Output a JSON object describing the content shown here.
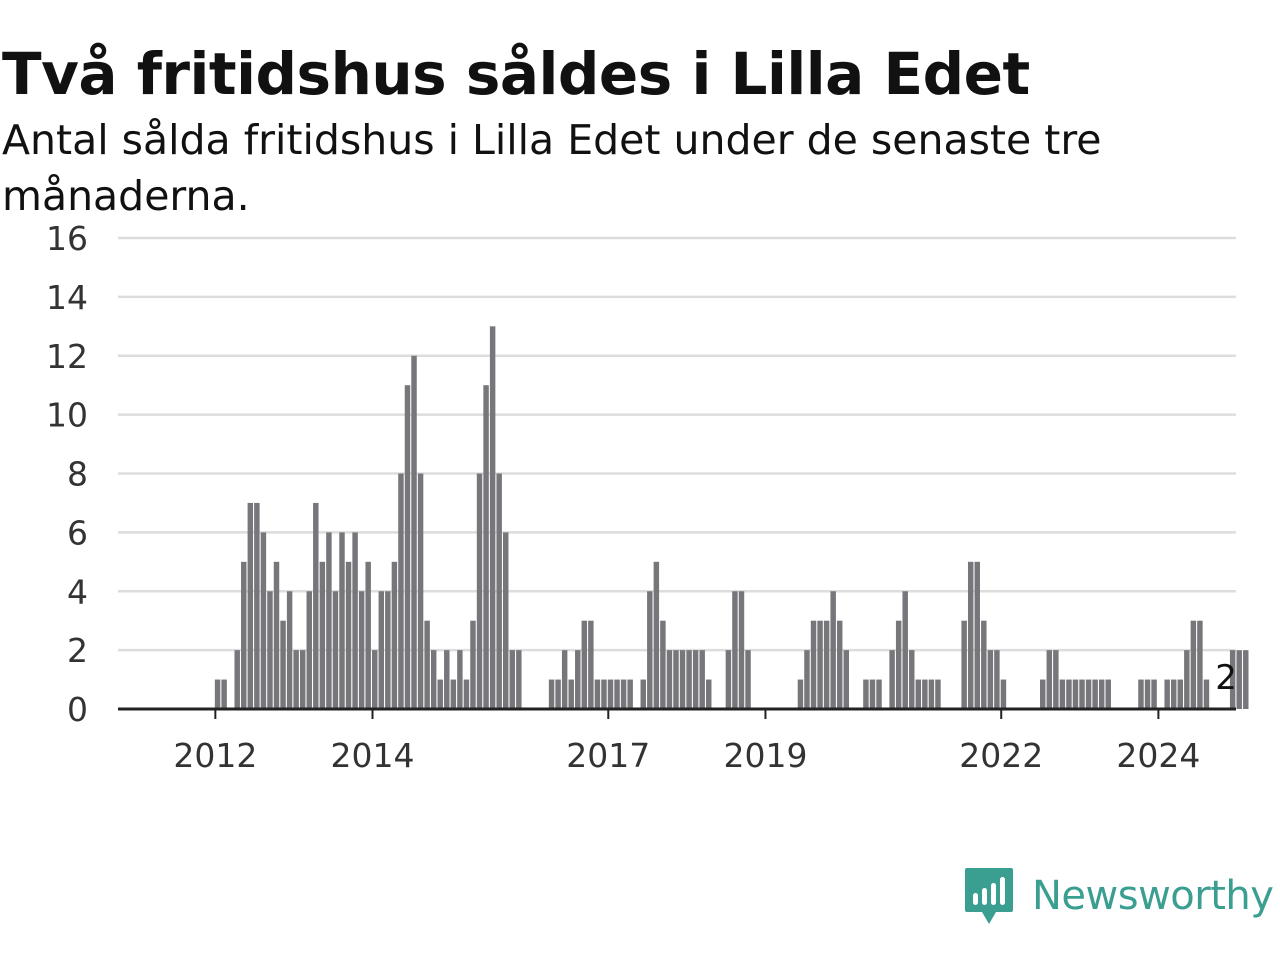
{
  "title": "Två fritidshus såldes i Lilla Edet",
  "subtitle": "Antal sålda fritidshus i Lilla Edet under de senaste tre månaderna.",
  "brand": {
    "name": "Newsworthy",
    "icon": "newsworthy-logo-icon",
    "color": "#3a9e90"
  },
  "colors": {
    "bar": "#76767b",
    "highlight": "#1aa192",
    "grid": "#dddddd",
    "axis": "#222222",
    "tick_text": "#333333"
  },
  "chart_data": {
    "type": "bar",
    "title": "Två fritidshus såldes i Lilla Edet",
    "subtitle": "Antal sålda fritidshus i Lilla Edet under de senaste tre månaderna.",
    "xlabel": "",
    "ylabel": "",
    "ylim": [
      0,
      16
    ],
    "yticks": [
      0,
      2,
      4,
      6,
      8,
      10,
      12,
      14,
      16
    ],
    "xticks": [
      {
        "label": "2012",
        "index": 7
      },
      {
        "label": "2014",
        "index": 31
      },
      {
        "label": "2017",
        "index": 67
      },
      {
        "label": "2019",
        "index": 91
      },
      {
        "label": "2022",
        "index": 127
      },
      {
        "label": "2024",
        "index": 151
      }
    ],
    "grid": true,
    "legend": "none",
    "highlight_index": 161,
    "highlight_label": "2",
    "values": [
      0,
      0,
      0,
      0,
      0,
      0,
      0,
      1,
      1,
      0,
      2,
      5,
      7,
      7,
      6,
      4,
      5,
      3,
      4,
      2,
      2,
      4,
      7,
      5,
      6,
      4,
      6,
      5,
      6,
      4,
      5,
      2,
      4,
      4,
      5,
      8,
      11,
      12,
      8,
      3,
      2,
      1,
      2,
      1,
      2,
      1,
      3,
      8,
      11,
      13,
      8,
      6,
      2,
      2,
      0,
      0,
      0,
      0,
      1,
      1,
      2,
      1,
      2,
      3,
      3,
      1,
      1,
      1,
      1,
      1,
      1,
      0,
      1,
      4,
      5,
      3,
      2,
      2,
      2,
      2,
      2,
      2,
      1,
      0,
      0,
      2,
      4,
      4,
      2,
      0,
      0,
      0,
      0,
      0,
      0,
      0,
      1,
      2,
      3,
      3,
      3,
      4,
      3,
      2,
      0,
      0,
      1,
      1,
      1,
      0,
      2,
      3,
      4,
      2,
      1,
      1,
      1,
      1,
      0,
      0,
      0,
      3,
      5,
      5,
      3,
      2,
      2,
      1,
      0,
      0,
      0,
      0,
      0,
      1,
      2,
      2,
      1,
      1,
      1,
      1,
      1,
      1,
      1,
      1,
      0,
      0,
      0,
      0,
      1,
      1,
      1,
      0,
      1,
      1,
      1,
      2,
      3,
      3,
      1,
      0,
      0,
      0,
      2,
      2,
      2
    ]
  }
}
